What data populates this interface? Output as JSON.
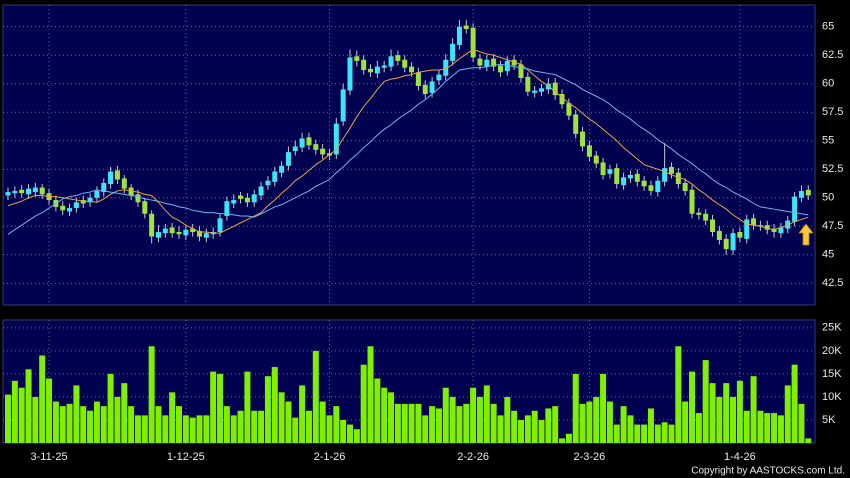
{
  "chart_data": [
    {
      "type": "candlestick",
      "open": [
        50.2,
        50.4,
        50.7,
        50.3,
        50.5,
        50.9,
        50.4,
        49.8,
        49.3,
        48.8,
        49.1,
        49.8,
        49.6,
        50.0,
        50.5,
        51.2,
        52.4,
        51.7,
        50.9,
        50.3,
        49.7,
        48.6,
        46.5,
        46.9,
        47.4,
        47.0,
        46.7,
        47.3,
        47.1,
        46.5,
        46.8,
        47.0,
        48.4,
        49.5,
        50.2,
        50.0,
        49.6,
        50.2,
        51.1,
        51.4,
        52.2,
        52.8,
        54.1,
        54.4,
        55.3,
        54.7,
        54.3,
        53.9,
        53.8,
        56.7,
        59.4,
        62.4,
        62.1,
        61.3,
        60.9,
        61.4,
        61.5,
        62.5,
        62.1,
        61.5,
        61.0,
        59.9,
        59.2,
        60.3,
        60.7,
        62.0,
        63.4,
        65.1,
        64.9,
        62.2,
        61.5,
        62.2,
        61.6,
        61.1,
        62.1,
        61.7,
        60.6,
        59.2,
        59.3,
        59.5,
        60.1,
        59.1,
        58.3,
        57.3,
        55.8,
        54.6,
        53.7,
        53.1,
        52.1,
        52.6,
        51.1,
        51.7,
        52.1,
        51.5,
        51.1,
        50.5,
        51.4,
        52.7,
        52.2,
        51.3,
        50.7,
        48.7,
        48.6,
        48.1,
        47.1,
        46.4,
        45.4,
        47.0,
        46.4,
        48.2,
        47.6,
        47.6,
        47.3,
        46.9,
        47.3,
        47.9,
        50.0,
        50.7
      ],
      "high": [
        50.9,
        51.0,
        51.1,
        51.2,
        51.3,
        51.2,
        50.8,
        50.2,
        49.7,
        49.5,
        50.0,
        50.2,
        50.4,
        51.0,
        51.7,
        52.7,
        52.8,
        52.0,
        51.2,
        50.7,
        50.0,
        48.9,
        47.6,
        47.7,
        47.8,
        47.5,
        47.6,
        47.7,
        47.5,
        47.3,
        47.4,
        48.6,
        50.1,
        50.3,
        50.5,
        50.4,
        50.7,
        51.4,
        51.9,
        52.7,
        53.2,
        54.5,
        55.0,
        55.7,
        55.7,
        55.1,
        54.7,
        54.3,
        57.0,
        60.0,
        63.0,
        62.9,
        62.5,
        61.7,
        62.0,
        62.0,
        63.0,
        62.9,
        62.5,
        61.9,
        61.4,
        60.3,
        60.6,
        61.2,
        62.6,
        64.0,
        65.6,
        65.6,
        65.3,
        62.6,
        62.5,
        62.6,
        62.0,
        62.4,
        62.5,
        62.1,
        61.0,
        59.8,
        60.0,
        60.5,
        60.5,
        59.5,
        58.7,
        57.7,
        56.2,
        55.0,
        54.1,
        53.5,
        52.9,
        53.0,
        52.2,
        52.4,
        52.5,
        51.9,
        51.5,
        51.9,
        54.8,
        53.1,
        52.6,
        51.7,
        51.1,
        49.1,
        49.0,
        48.5,
        47.5,
        46.8,
        47.3,
        47.4,
        48.5,
        48.6,
        48.0,
        48.0,
        47.7,
        47.8,
        48.4,
        50.5,
        51.1,
        51.1
      ],
      "low": [
        49.8,
        50.0,
        50.0,
        49.9,
        50.1,
        49.9,
        49.4,
        48.8,
        48.5,
        48.4,
        48.7,
        49.1,
        49.2,
        49.6,
        50.1,
        50.8,
        51.2,
        50.4,
        49.8,
        49.2,
        48.2,
        46.0,
        46.1,
        46.5,
        46.5,
        46.4,
        46.3,
        46.6,
        46.2,
        46.1,
        46.4,
        46.6,
        48.0,
        49.1,
        49.5,
        49.2,
        49.2,
        49.8,
        50.7,
        51.0,
        51.8,
        52.4,
        53.7,
        54.0,
        54.2,
        53.8,
        53.4,
        53.3,
        53.4,
        56.3,
        59.0,
        61.5,
        60.8,
        60.6,
        60.5,
        61.0,
        61.1,
        61.6,
        61.0,
        60.6,
        59.4,
        58.7,
        58.8,
        59.9,
        60.3,
        61.6,
        63.0,
        64.4,
        61.9,
        61.2,
        61.1,
        61.1,
        60.6,
        60.7,
        61.2,
        60.1,
        58.9,
        58.8,
        58.9,
        59.1,
        58.6,
        57.8,
        56.8,
        55.2,
        54.1,
        53.2,
        52.6,
        51.6,
        51.7,
        50.8,
        50.7,
        51.3,
        51.0,
        50.6,
        50.2,
        50.1,
        51.0,
        51.7,
        50.8,
        50.2,
        48.2,
        48.1,
        47.6,
        46.6,
        45.9,
        45.0,
        45.0,
        46.1,
        46.0,
        47.2,
        47.1,
        46.8,
        46.5,
        46.5,
        46.9,
        47.5,
        49.6,
        49.8
      ],
      "close": [
        50.5,
        50.6,
        50.4,
        50.8,
        50.9,
        50.3,
        49.8,
        49.2,
        48.9,
        49.1,
        49.6,
        49.5,
        50.0,
        50.6,
        51.3,
        52.3,
        51.6,
        50.8,
        50.2,
        49.6,
        48.6,
        46.6,
        47.0,
        47.3,
        46.9,
        46.8,
        47.2,
        47.0,
        46.6,
        46.9,
        47.0,
        48.2,
        49.7,
        49.8,
        49.9,
        49.6,
        50.3,
        51.0,
        51.5,
        52.3,
        52.8,
        54.0,
        54.5,
        55.2,
        54.6,
        54.2,
        53.8,
        53.7,
        56.5,
        59.5,
        62.3,
        62.0,
        61.2,
        61.0,
        61.5,
        61.6,
        62.4,
        62.0,
        61.4,
        61.0,
        59.8,
        59.1,
        60.2,
        60.8,
        62.1,
        63.5,
        65.0,
        64.8,
        62.3,
        61.6,
        62.1,
        61.5,
        61.0,
        62.0,
        61.6,
        60.5,
        59.3,
        59.4,
        59.6,
        60.0,
        59.0,
        58.2,
        57.2,
        55.6,
        54.5,
        53.6,
        53.0,
        52.0,
        52.5,
        51.2,
        51.8,
        52.0,
        51.4,
        51.0,
        50.6,
        51.5,
        52.6,
        52.1,
        51.2,
        50.6,
        48.6,
        48.5,
        48.0,
        47.0,
        46.3,
        45.5,
        46.9,
        46.5,
        48.1,
        47.6,
        47.5,
        47.2,
        47.0,
        47.4,
        48.0,
        50.1,
        50.6,
        50.2
      ],
      "up_color": "#3ce6f6",
      "down_color": "#9ee43a",
      "wick_color": "#c8c8c8",
      "series": [
        {
          "color": "#f0a040",
          "values": [
            49.3,
            49.5,
            49.7,
            50.0,
            50.2,
            50.2,
            50.1,
            50.1,
            50.0,
            49.9,
            49.8,
            49.7,
            49.7,
            49.6,
            49.9,
            50.3,
            50.6,
            50.7,
            50.6,
            50.5,
            50.3,
            50.2,
            49.6,
            48.9,
            48.3,
            48.0,
            47.6,
            47.3,
            47.0,
            47.0,
            46.9,
            46.9,
            47.2,
            47.5,
            47.8,
            48.1,
            48.4,
            48.7,
            49.3,
            49.8,
            50.4,
            50.9,
            51.5,
            51.9,
            52.4,
            52.9,
            53.3,
            53.8,
            54.2,
            55.2,
            56.1,
            57.1,
            58.0,
            58.7,
            59.5,
            60.2,
            60.4,
            60.5,
            60.7,
            60.8,
            61.0,
            61.1,
            61.2,
            61.2,
            61.3,
            61.7,
            62.2,
            62.6,
            63.0,
            62.8,
            62.6,
            62.5,
            62.3,
            62.1,
            61.9,
            61.7,
            61.2,
            60.7,
            60.2,
            59.8,
            59.3,
            58.8,
            58.3,
            57.9,
            57.4,
            56.9,
            56.5,
            56.0,
            55.5,
            55.0,
            54.4,
            53.9,
            53.4,
            52.9,
            52.7,
            52.5,
            52.3,
            52.0,
            51.8,
            51.6,
            51.2,
            50.7,
            50.3,
            49.8,
            49.4,
            49.0,
            48.5,
            48.1,
            47.7,
            47.6,
            47.5,
            47.3,
            47.2,
            47.4,
            47.6,
            47.9,
            48.1,
            48.3
          ]
        },
        {
          "color": "#6ab8f0",
          "values": [
            46.8,
            47.2,
            47.6,
            48.0,
            48.4,
            48.7,
            49.1,
            49.5,
            49.9,
            50.1,
            50.2,
            50.4,
            50.5,
            50.7,
            50.6,
            50.5,
            50.4,
            50.3,
            50.2,
            50.1,
            49.9,
            49.8,
            49.7,
            49.5,
            49.4,
            49.2,
            49.1,
            48.9,
            48.8,
            48.7,
            48.7,
            48.6,
            48.6,
            48.5,
            48.4,
            48.4,
            48.3,
            48.6,
            48.9,
            49.2,
            49.4,
            49.7,
            50.0,
            50.3,
            50.6,
            51.0,
            51.3,
            51.6,
            52.2,
            52.7,
            53.3,
            53.8,
            54.4,
            54.9,
            55.5,
            56.0,
            56.4,
            56.9,
            57.3,
            57.7,
            58.2,
            58.6,
            59.1,
            59.6,
            60.2,
            60.7,
            61.2,
            61.3,
            61.4,
            61.4,
            61.5,
            61.6,
            61.7,
            61.6,
            61.5,
            61.4,
            61.3,
            61.1,
            61.0,
            60.9,
            60.8,
            60.5,
            60.2,
            59.9,
            59.5,
            59.2,
            58.9,
            58.6,
            58.2,
            57.7,
            57.3,
            56.9,
            56.4,
            56.0,
            55.6,
            55.1,
            54.7,
            54.3,
            53.8,
            53.4,
            53.0,
            52.5,
            52.1,
            51.6,
            51.2,
            50.9,
            50.5,
            50.2,
            49.9,
            49.5,
            49.2,
            49.1,
            49.0,
            48.9,
            48.8,
            48.7,
            48.6,
            48.5
          ]
        }
      ],
      "ylim": [
        40.6,
        66.9
      ],
      "yticks": [
        42.5,
        45,
        47.5,
        50,
        52.5,
        55,
        57.5,
        60,
        62.5,
        65
      ],
      "grid": true
    },
    {
      "type": "bar",
      "categories": [
        null,
        null,
        null,
        null,
        null,
        null,
        "3-11-25",
        null,
        null,
        null,
        null,
        null,
        null,
        null,
        null,
        null,
        null,
        null,
        null,
        null,
        null,
        null,
        null,
        null,
        null,
        null,
        "1-12-25",
        null,
        null,
        null,
        null,
        null,
        null,
        null,
        null,
        null,
        null,
        null,
        null,
        null,
        null,
        null,
        null,
        null,
        null,
        null,
        null,
        "2-1-26",
        null,
        null,
        null,
        null,
        null,
        null,
        null,
        null,
        null,
        null,
        null,
        null,
        null,
        null,
        null,
        null,
        null,
        null,
        null,
        null,
        "2-2-26",
        null,
        null,
        null,
        null,
        null,
        null,
        null,
        null,
        null,
        null,
        null,
        null,
        null,
        null,
        null,
        null,
        "2-3-26",
        null,
        null,
        null,
        null,
        null,
        null,
        null,
        null,
        null,
        null,
        null,
        null,
        null,
        null,
        null,
        null,
        null,
        null,
        null,
        null,
        null,
        "1-4-26",
        null,
        null,
        null,
        null,
        null,
        null,
        null,
        null,
        null,
        null
      ],
      "values": [
        10500,
        13500,
        12000,
        16000,
        10000,
        19000,
        14000,
        9000,
        8000,
        8500,
        12500,
        8000,
        7000,
        9000,
        8000,
        15000,
        10000,
        13000,
        8000,
        6000,
        6000,
        21000,
        8000,
        6000,
        11000,
        8000,
        6000,
        5500,
        6000,
        6000,
        15500,
        15000,
        8000,
        6000,
        7000,
        15500,
        7000,
        7000,
        14500,
        16500,
        11000,
        9000,
        5500,
        12500,
        7000,
        20000,
        9000,
        6000,
        8000,
        5000,
        4000,
        3000,
        17000,
        21000,
        14000,
        12000,
        11000,
        8500,
        8500,
        8500,
        8500,
        6000,
        8000,
        7500,
        12000,
        10000,
        8000,
        8500,
        12000,
        10000,
        12500,
        8500,
        6000,
        10000,
        7000,
        5000,
        6000,
        7000,
        5000,
        7500,
        8000,
        1000,
        2000,
        15000,
        8500,
        9000,
        10000,
        15000,
        9000,
        4000,
        8000,
        6000,
        4000,
        4000,
        7500,
        4000,
        4500,
        4000,
        21000,
        9000,
        15500,
        6500,
        18000,
        13000,
        10000,
        13000,
        10000,
        13500,
        7000,
        14500,
        7000,
        6500,
        6500,
        6000,
        12500,
        17000,
        8500,
        1000
      ],
      "color": "#80f000",
      "ylim": [
        0,
        26700
      ],
      "yticks": [
        {
          "value": 5000,
          "label": "5K"
        },
        {
          "value": 10000,
          "label": "10K"
        },
        {
          "value": 15000,
          "label": "15K"
        },
        {
          "value": 20000,
          "label": "20K"
        },
        {
          "value": 25000,
          "label": "25K"
        }
      ],
      "grid": true
    }
  ],
  "copyright": "Copyright by AASTOCKS.com Ltd."
}
